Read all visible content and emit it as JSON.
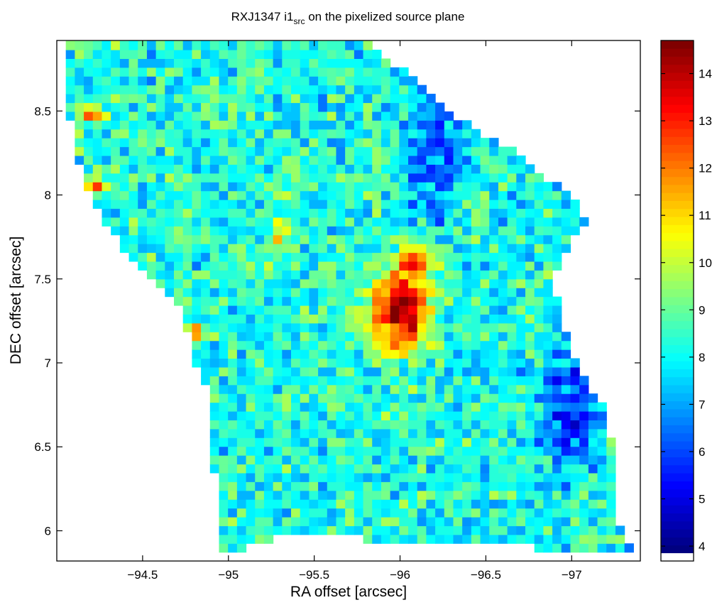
{
  "chart_data": {
    "type": "heatmap",
    "title": {
      "prefix": "RXJ1347 i1",
      "subscript": "src",
      "suffix": " on the pixelized source plane"
    },
    "xlabel": "RA offset [arcsec]",
    "ylabel": "DEC offset [arcsec]",
    "x_axis_reversed": true,
    "xlim": [
      -94.0,
      -97.4
    ],
    "ylim": [
      5.82,
      8.92
    ],
    "xticks": [
      -94.5,
      -95,
      -95.5,
      -96,
      -96.5,
      -97
    ],
    "xtick_labels": [
      "−94.5",
      "−95",
      "−95.5",
      "−96",
      "−96.5",
      "−97"
    ],
    "yticks": [
      6,
      6.5,
      7,
      7.5,
      8,
      8.5
    ],
    "ytick_labels": [
      "6",
      "6.5",
      "7",
      "7.5",
      "8",
      "8.5"
    ],
    "colorbar": {
      "colormap": "jet",
      "range": [
        3.85,
        14.7
      ],
      "ticks": [
        4,
        5,
        6,
        7,
        8,
        9,
        10,
        11,
        12,
        13,
        14
      ],
      "tick_labels": [
        "4",
        "5",
        "6",
        "7",
        "8",
        "9",
        "10",
        "11",
        "12",
        "13",
        "14"
      ],
      "bottom_band": "white"
    },
    "pixel_size_arcsec": 0.0525,
    "background_level": 8.2,
    "region_outline_ra_dec": [
      [
        -94.05,
        8.9
      ],
      [
        -95.8,
        8.9
      ],
      [
        -96.05,
        8.72
      ],
      [
        -96.35,
        8.45
      ],
      [
        -96.75,
        8.2
      ],
      [
        -97.0,
        7.98
      ],
      [
        -97.1,
        7.82
      ],
      [
        -97.0,
        7.75
      ],
      [
        -96.9,
        7.5
      ],
      [
        -96.95,
        7.2
      ],
      [
        -97.05,
        6.95
      ],
      [
        -97.2,
        6.72
      ],
      [
        -97.25,
        6.45
      ],
      [
        -97.25,
        6.15
      ],
      [
        -97.3,
        5.95
      ],
      [
        -97.4,
        5.85
      ],
      [
        -97.1,
        5.85
      ],
      [
        -96.8,
        5.9
      ],
      [
        -96.5,
        5.92
      ],
      [
        -96.2,
        5.95
      ],
      [
        -95.8,
        5.95
      ],
      [
        -95.4,
        5.97
      ],
      [
        -95.1,
        5.93
      ],
      [
        -95.05,
        5.85
      ],
      [
        -94.93,
        5.85
      ],
      [
        -94.93,
        6.05
      ],
      [
        -94.92,
        6.3
      ],
      [
        -94.9,
        6.8
      ],
      [
        -94.8,
        7.0
      ],
      [
        -94.73,
        7.3
      ],
      [
        -94.6,
        7.45
      ],
      [
        -94.4,
        7.65
      ],
      [
        -94.25,
        7.9
      ],
      [
        -94.15,
        8.1
      ],
      [
        -94.1,
        8.35
      ],
      [
        -94.05,
        8.6
      ]
    ],
    "features": [
      {
        "name": "central peak",
        "ra": -96.0,
        "dec": 7.32,
        "value": 14.5,
        "sigma_ra": 0.12,
        "sigma_dec": 0.18
      },
      {
        "name": "north-east extension",
        "ra": -96.1,
        "dec": 7.62,
        "value": 12.0,
        "sigma_ra": 0.07,
        "sigma_dec": 0.06
      },
      {
        "name": "west arm",
        "ra": -95.3,
        "dec": 7.78,
        "value": 11.2,
        "sigma_ra": 0.05,
        "sigma_dec": 0.08
      },
      {
        "name": "upper-left spot",
        "ra": -94.25,
        "dec": 8.05,
        "value": 12.0,
        "sigma_ra": 0.05,
        "sigma_dec": 0.04
      },
      {
        "name": "upper-left spot 2",
        "ra": -94.2,
        "dec": 8.48,
        "value": 11.5,
        "sigma_ra": 0.05,
        "sigma_dec": 0.04
      },
      {
        "name": "left edge spot",
        "ra": -94.78,
        "dec": 7.18,
        "value": 11.8,
        "sigma_ra": 0.05,
        "sigma_dec": 0.04
      },
      {
        "name": "north-east low region",
        "ra": -96.2,
        "dec": 8.35,
        "value": 6.0,
        "sigma_ra": 0.12,
        "sigma_dec": 0.35
      },
      {
        "name": "east low region",
        "ra": -97.0,
        "dec": 6.7,
        "value": 5.5,
        "sigma_ra": 0.12,
        "sigma_dec": 0.25
      }
    ]
  }
}
